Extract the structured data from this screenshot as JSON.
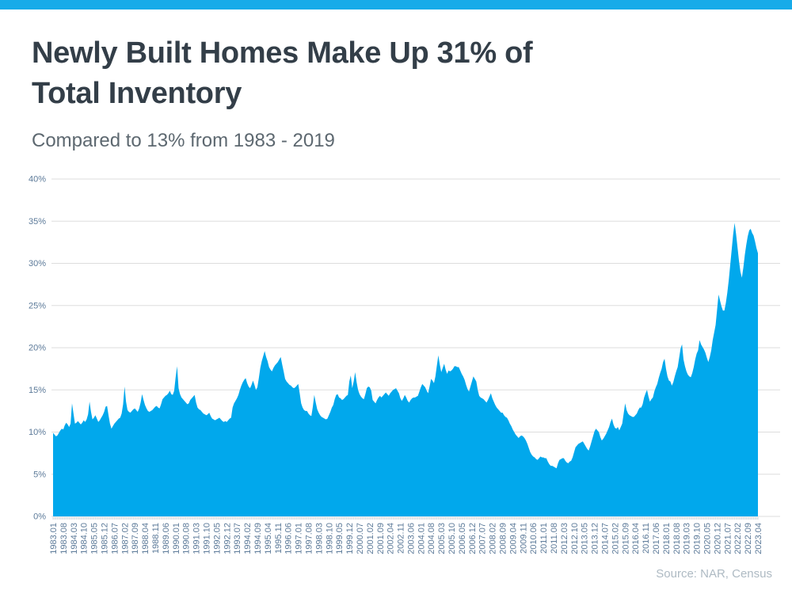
{
  "page": {
    "topbar_color": "#17abe9"
  },
  "header": {
    "title_line1": "Newly Built Homes Make Up 31% of",
    "title_line2": "Total Inventory",
    "subtitle": "Compared to 13% from 1983 - 2019"
  },
  "footer": {
    "source": "Source: NAR, Census"
  },
  "chart_data": {
    "type": "area",
    "title": "Share of newly built homes in total housing inventory",
    "xlabel": "",
    "ylabel": "",
    "ylim": [
      0,
      40
    ],
    "y_tick_values": [
      0,
      5,
      10,
      15,
      20,
      25,
      30,
      35,
      40
    ],
    "y_tick_suffix": "%",
    "grid": "horizontal",
    "legend": "none",
    "fill_color": "#01a8ec",
    "grid_color": "#dddddd",
    "tick_color": "#c9ced3",
    "axis_label_color": "#5c7a99",
    "x_label_every": 7,
    "x_labels": [
      "1983.01",
      "1983.08",
      "1984.03",
      "1984.10",
      "1985.05",
      "1985.12",
      "1986.07",
      "1987.02",
      "1987.09",
      "1988.04",
      "1988.11",
      "1989.06",
      "1990.01",
      "1990.08",
      "1991.03",
      "1991.10",
      "1992.05",
      "1992.12",
      "1993.07",
      "1994.02",
      "1994.09",
      "1995.04",
      "1995.11",
      "1996.06",
      "1997.01",
      "1997.08",
      "1998.03",
      "1998.10",
      "1999.05",
      "1999.12",
      "2000.07",
      "2001.02",
      "2001.09",
      "2002.04",
      "2002.11",
      "2003.06",
      "2004.01",
      "2004.08",
      "2005.03",
      "2005.10",
      "2006.05",
      "2006.12",
      "2007.07",
      "2008.02",
      "2008.09",
      "2009.04",
      "2009.11",
      "2010.06",
      "2011.01",
      "2011.08",
      "2012.03",
      "2012.10",
      "2013.05",
      "2013.12",
      "2014.07",
      "2015.02",
      "2015.09",
      "2016.04",
      "2016.11",
      "2017.06",
      "2018.01",
      "2018.08",
      "2019.03",
      "2019.10",
      "2020.05",
      "2020.12",
      "2021.07",
      "2022.02",
      "2022.09",
      "2023.04"
    ],
    "values": [
      9.9,
      9.7,
      9.5,
      9.6,
      9.9,
      10.2,
      10.4,
      10.3,
      10.8,
      11.1,
      10.9,
      10.6,
      11.0,
      13.4,
      12.2,
      11.0,
      11.1,
      11.3,
      11.1,
      10.9,
      11.1,
      11.4,
      11.2,
      11.5,
      12.1,
      13.6,
      12.4,
      11.5,
      11.7,
      12.0,
      11.6,
      11.2,
      11.4,
      11.7,
      12.0,
      12.4,
      13.0,
      13.1,
      12.0,
      11.0,
      10.4,
      10.7,
      11.0,
      11.2,
      11.4,
      11.6,
      11.7,
      12.2,
      13.3,
      15.4,
      13.6,
      12.6,
      12.4,
      12.3,
      12.5,
      12.7,
      12.8,
      12.6,
      12.4,
      12.8,
      13.5,
      14.5,
      13.8,
      13.2,
      12.8,
      12.5,
      12.4,
      12.5,
      12.6,
      12.8,
      13.0,
      13.1,
      12.9,
      12.8,
      13.3,
      13.9,
      14.1,
      14.3,
      14.4,
      14.6,
      14.9,
      14.5,
      14.4,
      14.9,
      16.5,
      17.8,
      15.2,
      14.5,
      14.1,
      13.9,
      13.7,
      13.5,
      13.3,
      13.4,
      13.8,
      14.0,
      14.2,
      14.4,
      13.5,
      12.9,
      12.7,
      12.6,
      12.4,
      12.2,
      12.1,
      12.0,
      12.1,
      12.3,
      11.9,
      11.6,
      11.5,
      11.4,
      11.5,
      11.6,
      11.7,
      11.5,
      11.3,
      11.2,
      11.3,
      11.2,
      11.4,
      11.6,
      11.7,
      12.9,
      13.4,
      13.7,
      14.0,
      14.4,
      15.0,
      15.5,
      15.9,
      16.2,
      16.4,
      15.8,
      15.4,
      15.2,
      15.6,
      16.1,
      15.6,
      15.0,
      15.3,
      16.4,
      17.6,
      18.4,
      19.0,
      19.6,
      18.9,
      18.4,
      17.7,
      17.4,
      17.2,
      17.6,
      17.9,
      18.1,
      18.3,
      18.6,
      18.9,
      18.0,
      17.2,
      16.3,
      16.0,
      15.8,
      15.6,
      15.5,
      15.3,
      15.2,
      15.3,
      15.5,
      15.7,
      14.6,
      13.4,
      12.9,
      12.6,
      12.5,
      12.5,
      12.2,
      12.0,
      11.9,
      13.0,
      14.4,
      13.5,
      12.7,
      12.3,
      12.0,
      11.8,
      11.7,
      11.6,
      11.5,
      11.6,
      12.0,
      12.4,
      12.9,
      13.2,
      13.9,
      14.4,
      14.5,
      14.1,
      14.0,
      13.8,
      13.9,
      14.1,
      14.3,
      14.4,
      16.0,
      16.7,
      15.2,
      16.0,
      17.1,
      15.9,
      15.0,
      14.5,
      14.2,
      14.0,
      13.9,
      14.5,
      15.2,
      15.4,
      15.3,
      14.9,
      13.8,
      13.6,
      13.4,
      13.8,
      14.1,
      14.3,
      14.1,
      14.3,
      14.5,
      14.7,
      14.5,
      14.3,
      14.6,
      14.8,
      15.0,
      15.1,
      15.2,
      14.9,
      14.6,
      14.0,
      13.7,
      14.0,
      14.4,
      14.1,
      13.7,
      13.5,
      13.8,
      14.0,
      14.1,
      14.1,
      14.2,
      14.3,
      14.8,
      15.3,
      15.7,
      15.5,
      15.3,
      14.9,
      14.6,
      15.4,
      16.3,
      16.1,
      15.8,
      16.6,
      17.9,
      19.1,
      18.0,
      17.1,
      17.6,
      18.1,
      17.4,
      16.9,
      17.3,
      17.2,
      17.3,
      17.5,
      17.8,
      17.8,
      17.7,
      17.7,
      17.3,
      16.9,
      16.6,
      16.2,
      15.6,
      15.1,
      14.8,
      15.4,
      16.0,
      16.6,
      16.3,
      16.0,
      15.0,
      14.3,
      14.1,
      14.0,
      13.9,
      13.7,
      13.5,
      13.8,
      14.2,
      14.6,
      14.0,
      13.6,
      13.2,
      12.9,
      12.7,
      12.5,
      12.3,
      12.3,
      12.0,
      11.8,
      11.7,
      11.4,
      11.0,
      10.7,
      10.3,
      10.0,
      9.7,
      9.5,
      9.3,
      9.5,
      9.6,
      9.5,
      9.3,
      9.0,
      8.6,
      8.1,
      7.6,
      7.3,
      7.1,
      7.0,
      6.8,
      6.7,
      6.9,
      7.1,
      7.0,
      7.0,
      6.9,
      6.9,
      6.5,
      6.2,
      6.0,
      6.0,
      5.9,
      5.8,
      5.7,
      6.3,
      6.7,
      6.8,
      6.9,
      6.9,
      6.6,
      6.4,
      6.3,
      6.5,
      6.6,
      7.0,
      7.6,
      8.2,
      8.4,
      8.6,
      8.7,
      8.8,
      8.9,
      8.6,
      8.3,
      8.0,
      7.8,
      8.3,
      8.9,
      9.5,
      10.1,
      10.4,
      10.2,
      10.0,
      9.4,
      9.0,
      9.2,
      9.5,
      9.8,
      10.2,
      10.6,
      11.2,
      11.6,
      10.9,
      10.5,
      10.4,
      10.6,
      10.2,
      10.6,
      11.0,
      12.2,
      13.4,
      12.6,
      12.2,
      12.0,
      11.9,
      11.8,
      11.8,
      12.0,
      12.2,
      12.6,
      12.9,
      12.9,
      13.3,
      14.1,
      14.6,
      15.0,
      14.2,
      13.6,
      13.9,
      14.1,
      14.8,
      15.3,
      15.7,
      16.4,
      17.0,
      17.5,
      18.3,
      18.7,
      17.5,
      16.6,
      16.1,
      16.0,
      15.5,
      15.9,
      16.6,
      17.2,
      17.7,
      18.8,
      19.9,
      20.4,
      18.6,
      17.8,
      17.2,
      16.8,
      16.6,
      16.5,
      17.0,
      17.7,
      18.6,
      19.3,
      19.7,
      20.9,
      20.4,
      20.1,
      19.8,
      19.4,
      18.8,
      18.3,
      18.9,
      19.7,
      20.9,
      21.8,
      22.7,
      24.5,
      26.3,
      25.6,
      24.9,
      24.4,
      24.4,
      25.3,
      26.5,
      28.0,
      29.8,
      31.6,
      33.4,
      34.8,
      33.5,
      31.9,
      30.3,
      29.0,
      28.3,
      29.5,
      31.0,
      32.2,
      33.2,
      33.9,
      34.1,
      33.6,
      33.3,
      32.6,
      31.8,
      31.2
    ]
  }
}
